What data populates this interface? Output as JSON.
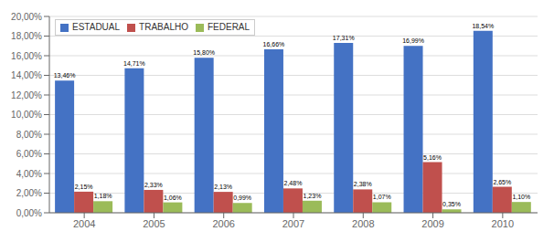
{
  "chart_data": {
    "type": "bar",
    "categories": [
      "2004",
      "2005",
      "2006",
      "2007",
      "2008",
      "2009",
      "2010"
    ],
    "series": [
      {
        "name": "ESTADUAL",
        "color": "#4472C4",
        "values": [
          13.46,
          14.71,
          15.8,
          16.66,
          17.31,
          16.99,
          18.54
        ],
        "value_labels": [
          "13,46%",
          "14,71%",
          "15,80%",
          "16,66%",
          "17,31%",
          "16,99%",
          "18,54%"
        ]
      },
      {
        "name": "TRABALHO",
        "color": "#C0504D",
        "values": [
          2.15,
          2.33,
          2.13,
          2.48,
          2.38,
          5.16,
          2.65
        ],
        "value_labels": [
          "2,15%",
          "2,33%",
          "2,13%",
          "2,48%",
          "2,38%",
          "5,16%",
          "2,65%"
        ]
      },
      {
        "name": "FEDERAL",
        "color": "#9BBB59",
        "values": [
          1.18,
          1.06,
          0.99,
          1.23,
          1.07,
          0.35,
          1.1
        ],
        "value_labels": [
          "1,18%",
          "1,06%",
          "0,99%",
          "1,23%",
          "1,07%",
          "0,35%",
          "1,10%"
        ]
      }
    ],
    "ylim": [
      0,
      20
    ],
    "yticks": [
      {
        "value": 0,
        "label": "0,00%"
      },
      {
        "value": 2,
        "label": "2,00%"
      },
      {
        "value": 4,
        "label": "4,00%"
      },
      {
        "value": 6,
        "label": "6,00%"
      },
      {
        "value": 8,
        "label": "8,00%"
      },
      {
        "value": 10,
        "label": "10,00%"
      },
      {
        "value": 12,
        "label": "12,00%"
      },
      {
        "value": 14,
        "label": "14,00%"
      },
      {
        "value": 16,
        "label": "16,00%"
      },
      {
        "value": 18,
        "label": "18,00%"
      },
      {
        "value": 20,
        "label": "20,00%"
      }
    ],
    "grid": true,
    "legend": "upper left",
    "data_labels": true
  }
}
